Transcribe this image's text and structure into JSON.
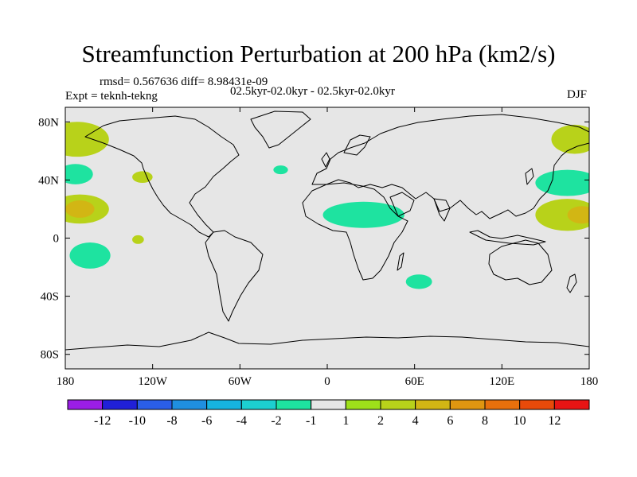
{
  "title": "Streamfunction Perturbation at 200 hPa (km2/s)",
  "stats": "rmsd= 0.567636 diff= 8.98431e-09",
  "experiment": "Expt = teknh-tekng",
  "period_range": "02.5kyr-02.0kyr - 02.5kyr-02.0kyr",
  "season": "DJF",
  "lat_ticks": [
    {
      "label": "80N",
      "lat": 80
    },
    {
      "label": "40N",
      "lat": 40
    },
    {
      "label": "0",
      "lat": 0
    },
    {
      "label": "40S",
      "lat": -40
    },
    {
      "label": "80S",
      "lat": -80
    }
  ],
  "lon_ticks": [
    {
      "label": "180",
      "lon": -180
    },
    {
      "label": "120W",
      "lon": -120
    },
    {
      "label": "60W",
      "lon": -60
    },
    {
      "label": "0",
      "lon": 0
    },
    {
      "label": "60E",
      "lon": 60
    },
    {
      "label": "120E",
      "lon": 120
    },
    {
      "label": "180",
      "lon": 180
    }
  ],
  "colorbar": {
    "colors": [
      "#9b1ee6",
      "#2020d8",
      "#2a5ee8",
      "#1f8fe0",
      "#16b3e0",
      "#1ccfd0",
      "#1ee3a0",
      "#e6e6e6",
      "#9ee01a",
      "#b8d21a",
      "#d2b614",
      "#e09610",
      "#e8700c",
      "#e84a0a",
      "#e81414"
    ],
    "labels": [
      "-12",
      "-10",
      "-8",
      "-6",
      "-4",
      "-2",
      "-1",
      "1",
      "2",
      "4",
      "6",
      "8",
      "10",
      "12"
    ]
  },
  "anomalies": [
    {
      "lon": -172,
      "lat": 68,
      "rlon": 22,
      "rlat": 12,
      "level": "2"
    },
    {
      "lon": -173,
      "lat": 44,
      "rlon": 12,
      "rlat": 7,
      "level": "-2"
    },
    {
      "lon": -127,
      "lat": 42,
      "rlon": 7,
      "rlat": 4,
      "level": "2"
    },
    {
      "lon": -170,
      "lat": 20,
      "rlon": 20,
      "rlat": 10,
      "level": "2"
    },
    {
      "lon": -170,
      "lat": 20,
      "rlon": 10,
      "rlat": 6,
      "level": "4"
    },
    {
      "lon": -130,
      "lat": -1,
      "rlon": 4,
      "rlat": 3,
      "level": "2"
    },
    {
      "lon": -163,
      "lat": -12,
      "rlon": 14,
      "rlat": 9,
      "level": "-2"
    },
    {
      "lon": -32,
      "lat": 47,
      "rlon": 5,
      "rlat": 3,
      "level": "-2"
    },
    {
      "lon": 25,
      "lat": 16,
      "rlon": 28,
      "rlat": 9,
      "level": "-2"
    },
    {
      "lon": 63,
      "lat": -30,
      "rlon": 9,
      "rlat": 5,
      "level": "-2"
    },
    {
      "lon": 170,
      "lat": 68,
      "rlon": 16,
      "rlat": 10,
      "level": "2"
    },
    {
      "lon": 165,
      "lat": 38,
      "rlon": 22,
      "rlat": 9,
      "level": "-2"
    },
    {
      "lon": 165,
      "lat": 16,
      "rlon": 22,
      "rlat": 11,
      "level": "2"
    },
    {
      "lon": 175,
      "lat": 16,
      "rlon": 10,
      "rlat": 6,
      "level": "4"
    }
  ]
}
